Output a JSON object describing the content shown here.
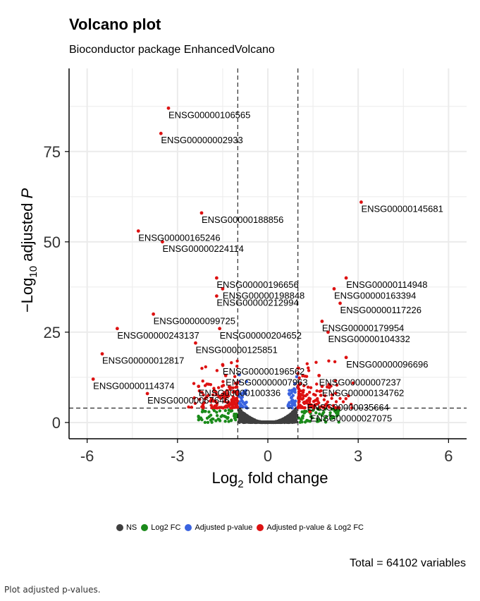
{
  "chart_data": {
    "type": "scatter",
    "title": "Volcano plot",
    "subtitle": "Bioconductor package EnhancedVolcano",
    "xlabel_main": "Log",
    "xlabel_sub": "2",
    "xlabel_tail": " fold change",
    "ylabel_lead": "−Log",
    "ylabel_sub": "10",
    "ylabel_tail": " adjusted ",
    "ylabel_var": "P",
    "xlim": [
      -6.6,
      6.6
    ],
    "ylim": [
      -4.5,
      98
    ],
    "x_ticks": [
      -6,
      -3,
      0,
      3,
      6
    ],
    "x_tick_labels": [
      "-6",
      "-3",
      "0",
      "3",
      "6"
    ],
    "y_ticks": [
      0,
      25,
      50,
      75
    ],
    "y_tick_labels": [
      "0",
      "25",
      "50",
      "75"
    ],
    "fc_cutoff": 1,
    "p_cutoff_line": 4,
    "grid": true,
    "legend_position": "bottom",
    "legend": [
      {
        "name": "NS",
        "color": "#3f3f3f"
      },
      {
        "name": "Log2 FC",
        "color": "#1a8a1a"
      },
      {
        "name": "Adjusted p-value",
        "color": "#3a63e0"
      },
      {
        "name": "Adjusted p-value & Log2 FC",
        "color": "#dd1111"
      }
    ],
    "caption": "Total = 64102 variables",
    "labeled_points": [
      {
        "label": "ENSG00000106565",
        "x": -3.3,
        "y": 87
      },
      {
        "label": "ENSG00000002933",
        "x": -3.55,
        "y": 80
      },
      {
        "label": "ENSG00000145681",
        "x": 3.1,
        "y": 61
      },
      {
        "label": "ENSG00000188856",
        "x": -2.2,
        "y": 58
      },
      {
        "label": "ENSG00000165246",
        "x": -4.3,
        "y": 53
      },
      {
        "label": "ENSG00000224114",
        "x": -3.5,
        "y": 50
      },
      {
        "label": "ENSG00000196656",
        "x": -1.7,
        "y": 40
      },
      {
        "label": "ENSG00000114948",
        "x": 2.6,
        "y": 40
      },
      {
        "label": "ENSG00000198848",
        "x": -1.5,
        "y": 37
      },
      {
        "label": "ENSG00000163394",
        "x": 2.2,
        "y": 37
      },
      {
        "label": "ENSG00000212994",
        "x": -1.7,
        "y": 35
      },
      {
        "label": "ENSG00000117226",
        "x": 2.4,
        "y": 33
      },
      {
        "label": "ENSG00000099725",
        "x": -3.8,
        "y": 30
      },
      {
        "label": "ENSG00000179954",
        "x": 1.8,
        "y": 28
      },
      {
        "label": "ENSG00000204652",
        "x": -1.6,
        "y": 26
      },
      {
        "label": "ENSG00000243137",
        "x": -5.0,
        "y": 26
      },
      {
        "label": "ENSG00000104332",
        "x": 2.0,
        "y": 25
      },
      {
        "label": "ENSG00000125851",
        "x": -2.4,
        "y": 22
      },
      {
        "label": "ENSG00000012817",
        "x": -5.5,
        "y": 19
      },
      {
        "label": "ENSG00000196562",
        "x": -1.5,
        "y": 16
      },
      {
        "label": "ENSG00000096696",
        "x": 2.6,
        "y": 18
      },
      {
        "label": "ENSG00000007963",
        "x": -1.4,
        "y": 13
      },
      {
        "label": "ENSG00000007237",
        "x": 1.7,
        "y": 13
      },
      {
        "label": "ENSG00000114374",
        "x": -5.8,
        "y": 12
      },
      {
        "label": "ENSG00000100336",
        "x": -2.3,
        "y": 10
      },
      {
        "label": "ENSG00000134762",
        "x": 1.8,
        "y": 10
      },
      {
        "label": "ENSG00000067646",
        "x": -4.0,
        "y": 8
      },
      {
        "label": "ENSG00000035664",
        "x": 1.3,
        "y": 6
      },
      {
        "label": "ENSG00000027075",
        "x": 1.4,
        "y": 3
      }
    ]
  },
  "footnote": "Plot adjusted p-values."
}
